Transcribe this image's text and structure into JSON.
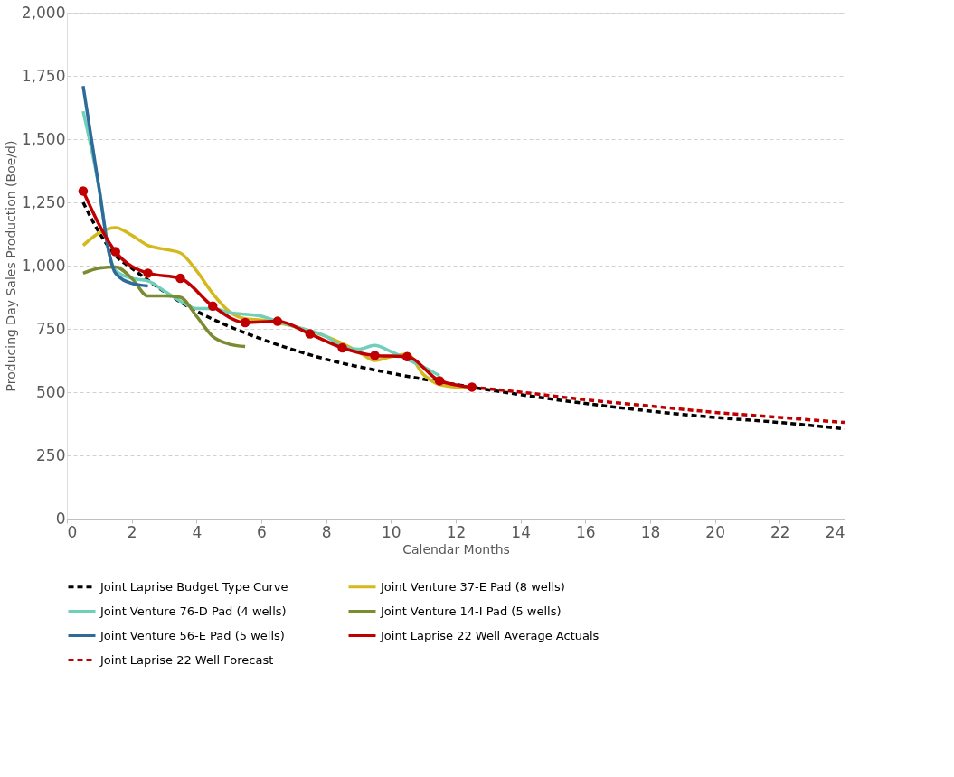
{
  "chart_data": {
    "type": "line",
    "xlabel": "Calendar Months",
    "ylabel": "Producing Day Sales Production (Boe/d)",
    "xlim": [
      0,
      24
    ],
    "xticks": [
      0,
      2,
      4,
      6,
      8,
      10,
      12,
      14,
      16,
      18,
      20,
      22,
      24
    ],
    "ylim": [
      0,
      2000
    ],
    "yticks": [
      0,
      {
        "value": 250,
        "label": "250"
      },
      {
        "value": 500,
        "label": "500"
      },
      {
        "value": 750,
        "label": "750"
      },
      {
        "value": 1000,
        "label": "1,000"
      },
      {
        "value": 1250,
        "label": "1,250"
      },
      {
        "value": 1500,
        "label": "1,500"
      },
      {
        "value": 1750,
        "label": "1,750"
      },
      {
        "value": 2000,
        "label": "2,000"
      }
    ],
    "grid": "y",
    "legend": "bottom",
    "series": [
      {
        "name": "Joint Laprise Budget Type Curve",
        "color": "#000000",
        "line_style": "dashed",
        "marker": "none",
        "x": [
          0.5,
          1,
          1.5,
          2,
          4,
          5,
          6,
          8,
          10,
          12,
          14,
          16,
          18,
          20,
          22,
          24
        ],
        "values": [
          1250,
          1130,
          1040,
          990,
          820,
          760,
          710,
          630,
          575,
          530,
          490,
          455,
          425,
          400,
          380,
          355
        ]
      },
      {
        "name": "Joint Venture 37-E Pad (8 wells)",
        "color": "#d4b81e",
        "line_style": "solid",
        "marker": "none",
        "x": [
          0.5,
          1,
          1.5,
          2,
          2.5,
          3,
          3.5,
          4,
          4.5,
          5,
          5.5,
          6,
          7,
          8,
          9,
          9.5,
          10,
          10.5,
          11,
          11.5,
          12,
          12.5
        ],
        "values": [
          1080,
          1130,
          1150,
          1120,
          1080,
          1065,
          1050,
          980,
          890,
          820,
          790,
          785,
          760,
          720,
          660,
          625,
          640,
          650,
          570,
          530,
          520,
          515
        ]
      },
      {
        "name": "Joint Venture 76-D Pad (4 wells)",
        "color": "#6fcfb8",
        "line_style": "solid",
        "marker": "none",
        "x": [
          0.5,
          1,
          1.3,
          1.5,
          2,
          2.5,
          3,
          3.5,
          4,
          4.5,
          5,
          6,
          6.5,
          7,
          8,
          8.5,
          9,
          9.5,
          10,
          10.5,
          11,
          11.5
        ],
        "values": [
          1610,
          1300,
          1050,
          980,
          950,
          940,
          900,
          860,
          830,
          830,
          815,
          800,
          780,
          760,
          720,
          680,
          670,
          685,
          660,
          630,
          600,
          565
        ]
      },
      {
        "name": "Joint Venture 14-I Pad (5 wells)",
        "color": "#7a8c32",
        "line_style": "solid",
        "marker": "none",
        "x": [
          0.5,
          1,
          1.5,
          2,
          2.5,
          3,
          3.5,
          4,
          4.5,
          5,
          5.5
        ],
        "values": [
          970,
          990,
          995,
          950,
          880,
          880,
          875,
          800,
          720,
          690,
          680
        ]
      },
      {
        "name": "Joint Venture 56-E Pad (5 wells)",
        "color": "#2e6a9a",
        "line_style": "solid",
        "marker": "none",
        "x": [
          0.5,
          1,
          1.3,
          1.5,
          2,
          2.5
        ],
        "values": [
          1710,
          1300,
          1050,
          970,
          930,
          920
        ]
      },
      {
        "name": "Joint Laprise 22 Well Average Actuals",
        "color": "#c00000",
        "line_style": "solid",
        "marker": "circle",
        "x": [
          0.5,
          1.5,
          2.5,
          3.5,
          4.5,
          5.5,
          6.5,
          7.5,
          8.5,
          9.5,
          10.5,
          11.5,
          12.5
        ],
        "values": [
          1295,
          1055,
          970,
          950,
          840,
          775,
          780,
          730,
          675,
          645,
          640,
          545,
          520
        ]
      },
      {
        "name": "Joint Laprise 22 Well Forecast",
        "color": "#c00000",
        "line_style": "dashed",
        "marker": "none",
        "x": [
          12.5,
          14,
          16,
          18,
          20,
          22,
          24
        ],
        "values": [
          520,
          500,
          470,
          445,
          420,
          400,
          380
        ]
      }
    ]
  }
}
